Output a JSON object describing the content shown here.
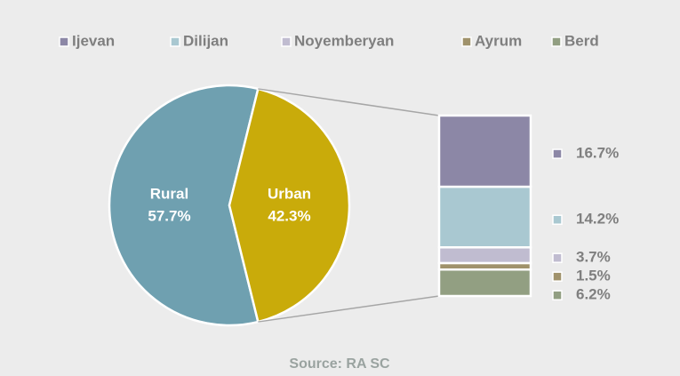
{
  "chart_data": {
    "type": "pie-of-bar",
    "pie": {
      "categories": [
        "Rural",
        "Urban"
      ],
      "values": [
        57.7,
        42.3
      ],
      "value_labels": [
        "57.7%",
        "42.3%"
      ],
      "colors": [
        "#6fa0b0",
        "#c9ab0a"
      ]
    },
    "bar": {
      "categories": [
        "Ijevan",
        "Dilijan",
        "Noyemberyan",
        "Ayrum",
        "Berd"
      ],
      "values": [
        16.7,
        14.2,
        3.7,
        1.5,
        6.2
      ],
      "value_labels": [
        "16.7%",
        "14.2%",
        "3.7%",
        "1.5%",
        "6.2%"
      ],
      "colors": [
        "#8c87a6",
        "#a9c8d1",
        "#c0bcd0",
        "#a0926b",
        "#929f82"
      ]
    },
    "source": "Source: RA SC"
  }
}
